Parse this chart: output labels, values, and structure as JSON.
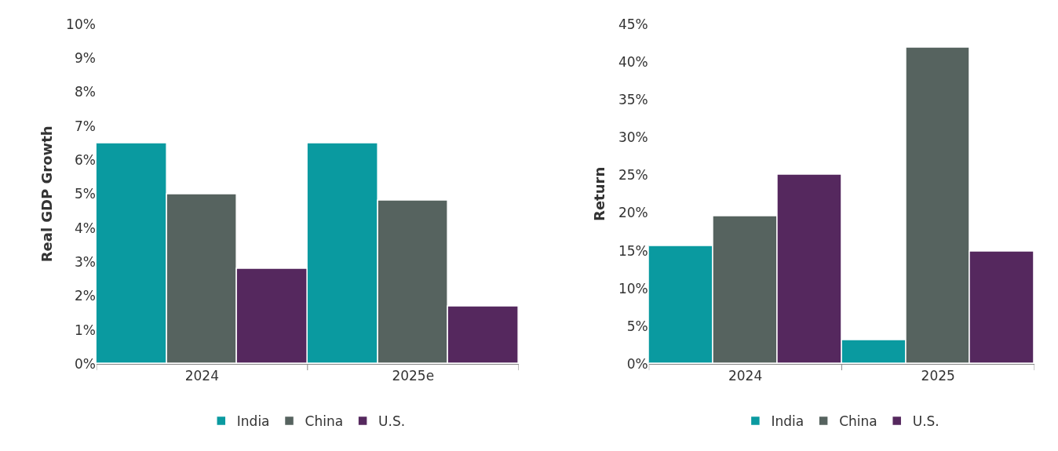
{
  "chart_data": [
    {
      "type": "bar",
      "ylabel": "Real GDP Growth",
      "categories": [
        "2024",
        "2025e"
      ],
      "series": [
        {
          "name": "India",
          "color": "#0a9aa0",
          "values": [
            6.5,
            6.5
          ]
        },
        {
          "name": "China",
          "color": "#56635f",
          "values": [
            5.0,
            4.8
          ]
        },
        {
          "name": "U.S.",
          "color": "#55285e",
          "values": [
            2.8,
            1.7
          ]
        }
      ],
      "ylim": [
        0,
        10
      ],
      "yticks": [
        {
          "value": 0,
          "label": "0%"
        },
        {
          "value": 1,
          "label": "1%"
        },
        {
          "value": 2,
          "label": "2%"
        },
        {
          "value": 3,
          "label": "3%"
        },
        {
          "value": 4,
          "label": "4%"
        },
        {
          "value": 5,
          "label": "5%"
        },
        {
          "value": 6,
          "label": "6%"
        },
        {
          "value": 7,
          "label": "7%"
        },
        {
          "value": 8,
          "label": "8%"
        },
        {
          "value": 9,
          "label": "9%"
        },
        {
          "value": 10,
          "label": "10%"
        }
      ],
      "legend": "bottom"
    },
    {
      "type": "bar",
      "ylabel": "Return",
      "categories": [
        "2024",
        "2025"
      ],
      "series": [
        {
          "name": "India",
          "color": "#0a9aa0",
          "values": [
            15.6,
            3.2
          ]
        },
        {
          "name": "China",
          "color": "#56635f",
          "values": [
            19.6,
            41.9
          ]
        },
        {
          "name": "U.S.",
          "color": "#55285e",
          "values": [
            25.1,
            14.9
          ]
        }
      ],
      "ylim": [
        0,
        45
      ],
      "yticks": [
        {
          "value": 0,
          "label": "0%"
        },
        {
          "value": 5,
          "label": "5%"
        },
        {
          "value": 10,
          "label": "10%"
        },
        {
          "value": 15,
          "label": "15%"
        },
        {
          "value": 20,
          "label": "20%"
        },
        {
          "value": 25,
          "label": "25%"
        },
        {
          "value": 30,
          "label": "30%"
        },
        {
          "value": 35,
          "label": "35%"
        },
        {
          "value": 40,
          "label": "40%"
        },
        {
          "value": 45,
          "label": "45%"
        }
      ],
      "legend": "bottom"
    }
  ]
}
